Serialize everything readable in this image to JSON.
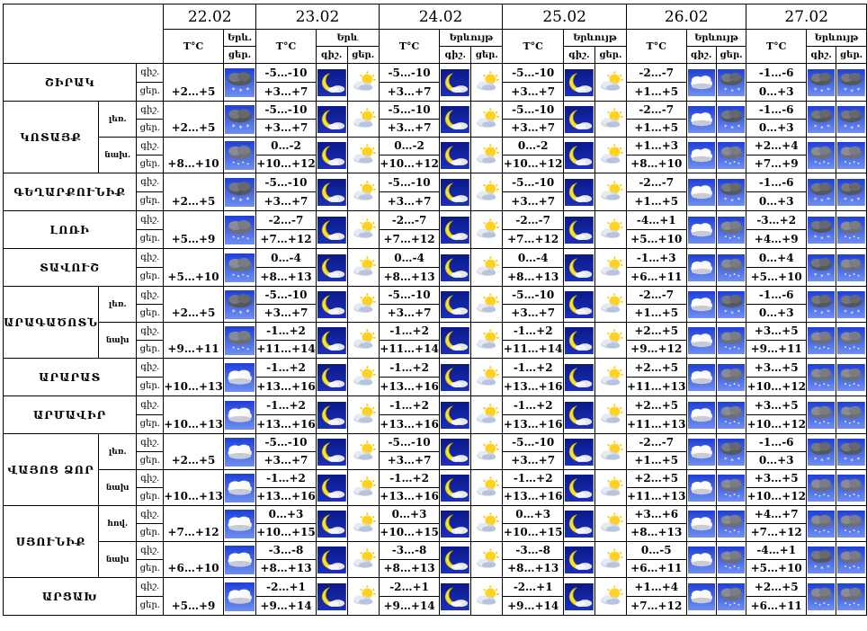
{
  "dates": [
    "22.02",
    "23.02",
    "24.02",
    "25.02",
    "26.02",
    "27.02"
  ],
  "headers": {
    "temp": "T°C",
    "day": "ցեր.",
    "night": "գիշ.",
    "day_short": "ցեր.",
    "exp22": "Երև.",
    "exp23": "Երև",
    "exp": "Երևույթ"
  },
  "row_labels": {
    "night": "գիշ.",
    "day": "ցեր."
  },
  "regions": [
    {
      "name": "ՇԻՐԱԿ",
      "subs": [
        {
          "sub": "",
          "t22": [
            "",
            "+2…+5"
          ],
          "i22": [
            "",
            "snow-cloud"
          ],
          "t": [
            [
              "-5…-10",
              "+3…+7"
            ],
            [
              "-5…-10",
              "+3…+7"
            ],
            [
              "-5…-10",
              "+3…+7"
            ],
            [
              "-2…-7",
              "+1…+5"
            ],
            [
              "-1…-6",
              "0…+3"
            ]
          ],
          "ic": [
            [
              "moon",
              "sun-cloud"
            ],
            [
              "moon",
              "sun-cloud"
            ],
            [
              "moon",
              "sun-cloud"
            ],
            [
              "cloud",
              "snow-cloud"
            ],
            [
              "snow-cloud",
              "snow-cloud"
            ]
          ]
        }
      ]
    },
    {
      "name": "ԿՈՏԱՅՔ",
      "subs": [
        {
          "sub": "լեռ.",
          "t22": [
            "",
            "+2…+5"
          ],
          "i22": [
            "",
            "snow-cloud"
          ],
          "t": [
            [
              "-5…-10",
              "+3…+7"
            ],
            [
              "-5…-10",
              "+3…+7"
            ],
            [
              "-5…-10",
              "+3…+7"
            ],
            [
              "-2…-7",
              "+1…+5"
            ],
            [
              "-1…-6",
              "0…+3"
            ]
          ],
          "ic": [
            [
              "moon",
              "sun-cloud"
            ],
            [
              "moon",
              "sun-cloud"
            ],
            [
              "moon",
              "sun-cloud"
            ],
            [
              "cloud",
              "snow-cloud"
            ],
            [
              "snow-cloud",
              "snow-cloud"
            ]
          ]
        },
        {
          "sub": "նախ.",
          "t22": [
            "",
            "+8…+10"
          ],
          "i22": [
            "",
            "rain-cloud"
          ],
          "t": [
            [
              "0…-2",
              "+10…+12"
            ],
            [
              "0…-2",
              "+10…+12"
            ],
            [
              "0…-2",
              "+10…+12"
            ],
            [
              "+1…+3",
              "+8…+10"
            ],
            [
              "+2…+4",
              "+7…+9"
            ]
          ],
          "ic": [
            [
              "moon",
              "sun-cloud"
            ],
            [
              "moon",
              "sun-cloud"
            ],
            [
              "moon",
              "sun-cloud"
            ],
            [
              "cloud",
              "rain-cloud"
            ],
            [
              "rain-cloud",
              "rain-cloud"
            ]
          ]
        }
      ]
    },
    {
      "name": "ԳԵՂԱՐՔՈՒՆԻՔ",
      "subs": [
        {
          "sub": "",
          "t22": [
            "",
            "+2…+5"
          ],
          "i22": [
            "",
            "snow-cloud"
          ],
          "t": [
            [
              "-5…-10",
              "+3…+7"
            ],
            [
              "-5…-10",
              "+3…+7"
            ],
            [
              "-5…-10",
              "+3…+7"
            ],
            [
              "-2…-7",
              "+1…+5"
            ],
            [
              "-1…-6",
              "0…+3"
            ]
          ],
          "ic": [
            [
              "moon",
              "sun-cloud"
            ],
            [
              "moon",
              "sun-cloud"
            ],
            [
              "moon",
              "sun-cloud"
            ],
            [
              "cloud",
              "snow-cloud"
            ],
            [
              "snow-cloud",
              "snow-cloud"
            ]
          ]
        }
      ]
    },
    {
      "name": "ԼՈՌԻ",
      "subs": [
        {
          "sub": "",
          "t22": [
            "",
            "+5…+9"
          ],
          "i22": [
            "",
            "rain-cloud"
          ],
          "t": [
            [
              "-2…-7",
              "+7…+12"
            ],
            [
              "-2…-7",
              "+7…+12"
            ],
            [
              "-2…-7",
              "+7…+12"
            ],
            [
              "-4…+1",
              "+5…+10"
            ],
            [
              "-3…+2",
              "+4…+9"
            ]
          ],
          "ic": [
            [
              "moon",
              "sun-cloud"
            ],
            [
              "moon",
              "sun-cloud"
            ],
            [
              "moon",
              "sun-cloud"
            ],
            [
              "cloud",
              "rain-cloud"
            ],
            [
              "snow-cloud",
              "rain-cloud"
            ]
          ]
        }
      ]
    },
    {
      "name": "ՏԱՎՈՒՇ",
      "subs": [
        {
          "sub": "",
          "t22": [
            "",
            "+5…+10"
          ],
          "i22": [
            "",
            "rain-cloud"
          ],
          "t": [
            [
              "0…-4",
              "+8…+13"
            ],
            [
              "0…-4",
              "+8…+13"
            ],
            [
              "0…-4",
              "+8…+13"
            ],
            [
              "-1…+3",
              "+6…+11"
            ],
            [
              "0…+4",
              "+5…+10"
            ]
          ],
          "ic": [
            [
              "moon",
              "sun-cloud"
            ],
            [
              "moon",
              "sun-cloud"
            ],
            [
              "moon",
              "sun-cloud"
            ],
            [
              "cloud",
              "rain-cloud"
            ],
            [
              "snow-cloud",
              "rain-cloud"
            ]
          ]
        }
      ]
    },
    {
      "name": "ԱՐԱԳԱԾՈՏՆ",
      "subs": [
        {
          "sub": "լեռ.",
          "t22": [
            "",
            "+2…+5"
          ],
          "i22": [
            "",
            "snow-cloud"
          ],
          "t": [
            [
              "-5…-10",
              "+3…+7"
            ],
            [
              "-5…-10",
              "+3…+7"
            ],
            [
              "-5…-10",
              "+3…+7"
            ],
            [
              "-2…-7",
              "+1…+5"
            ],
            [
              "-1…-6",
              "0…+3"
            ]
          ],
          "ic": [
            [
              "moon",
              "sun-cloud"
            ],
            [
              "moon",
              "sun-cloud"
            ],
            [
              "moon",
              "sun-cloud"
            ],
            [
              "cloud",
              "snow-cloud"
            ],
            [
              "snow-cloud",
              "snow-cloud"
            ]
          ]
        },
        {
          "sub": "նախ",
          "t22": [
            "",
            "+9…+11"
          ],
          "i22": [
            "",
            "rain-cloud"
          ],
          "t": [
            [
              "-1…+2",
              "+11…+14"
            ],
            [
              "-1…+2",
              "+11…+14"
            ],
            [
              "-1…+2",
              "+11…+14"
            ],
            [
              "+2…+5",
              "+9…+12"
            ],
            [
              "+3…+5",
              "+9…+11"
            ]
          ],
          "ic": [
            [
              "moon",
              "sun-cloud"
            ],
            [
              "moon",
              "sun-cloud"
            ],
            [
              "moon",
              "sun-cloud"
            ],
            [
              "cloud",
              "rain-cloud"
            ],
            [
              "rain-cloud",
              "rain-cloud"
            ]
          ]
        }
      ]
    },
    {
      "name": "ԱՐԱՐԱՏ",
      "subs": [
        {
          "sub": "",
          "t22": [
            "",
            "+10…+13"
          ],
          "i22": [
            "",
            "cloud"
          ],
          "t": [
            [
              "-1…+2",
              "+13…+16"
            ],
            [
              "-1…+2",
              "+13…+16"
            ],
            [
              "-1…+2",
              "+13…+16"
            ],
            [
              "+2…+5",
              "+11…+13"
            ],
            [
              "+3…+5",
              "+10…+12"
            ]
          ],
          "ic": [
            [
              "moon",
              "sun-cloud"
            ],
            [
              "moon",
              "sun-cloud"
            ],
            [
              "moon",
              "sun-cloud"
            ],
            [
              "cloud",
              "rain-cloud"
            ],
            [
              "rain-cloud",
              "rain-cloud"
            ]
          ]
        }
      ]
    },
    {
      "name": "ԱՐՄԱՎԻՐ",
      "subs": [
        {
          "sub": "",
          "t22": [
            "",
            "+10…+13"
          ],
          "i22": [
            "",
            "cloud"
          ],
          "t": [
            [
              "-1…+2",
              "+13…+16"
            ],
            [
              "-1…+2",
              "+13…+16"
            ],
            [
              "-1…+2",
              "+13…+16"
            ],
            [
              "+2…+5",
              "+11…+13"
            ],
            [
              "+3…+5",
              "+10…+12"
            ]
          ],
          "ic": [
            [
              "moon",
              "sun-cloud"
            ],
            [
              "moon",
              "sun-cloud"
            ],
            [
              "moon",
              "sun-cloud"
            ],
            [
              "cloud",
              "rain-cloud"
            ],
            [
              "rain-cloud",
              "rain-cloud"
            ]
          ]
        }
      ]
    },
    {
      "name": "ՎԱՅՈՑ ՁՈՐ",
      "subs": [
        {
          "sub": "լեռ.",
          "t22": [
            "",
            "+2…+5"
          ],
          "i22": [
            "",
            "cloud"
          ],
          "t": [
            [
              "-5…-10",
              "+3…+7"
            ],
            [
              "-5…-10",
              "+3…+7"
            ],
            [
              "-5…-10",
              "+3…+7"
            ],
            [
              "-2…-7",
              "+1…+5"
            ],
            [
              "-1…-6",
              "0…+3"
            ]
          ],
          "ic": [
            [
              "moon",
              "sun-cloud"
            ],
            [
              "moon",
              "sun-cloud"
            ],
            [
              "moon",
              "sun-cloud"
            ],
            [
              "cloud",
              "snow-cloud"
            ],
            [
              "snow-cloud",
              "snow-cloud"
            ]
          ]
        },
        {
          "sub": "նախ",
          "t22": [
            "",
            "+10…+13"
          ],
          "i22": [
            "",
            "cloud"
          ],
          "t": [
            [
              "-1…+2",
              "+13…+16"
            ],
            [
              "-1…+2",
              "+13…+16"
            ],
            [
              "-1…+2",
              "+13…+16"
            ],
            [
              "+2…+5",
              "+11…+13"
            ],
            [
              "+3…+5",
              "+10…+12"
            ]
          ],
          "ic": [
            [
              "moon",
              "sun-cloud"
            ],
            [
              "moon",
              "sun-cloud"
            ],
            [
              "moon",
              "sun-cloud"
            ],
            [
              "cloud",
              "rain-cloud"
            ],
            [
              "rain-cloud",
              "rain-cloud"
            ]
          ]
        }
      ]
    },
    {
      "name": "ՍՅՈՒՆԻՔ",
      "subs": [
        {
          "sub": "հով.",
          "t22": [
            "",
            "+7…+12"
          ],
          "i22": [
            "",
            "cloud"
          ],
          "t": [
            [
              "0…+3",
              "+10…+15"
            ],
            [
              "0…+3",
              "+10…+15"
            ],
            [
              "0…+3",
              "+10…+15"
            ],
            [
              "+3…+6",
              "+8…+13"
            ],
            [
              "+4…+7",
              "+7…+12"
            ]
          ],
          "ic": [
            [
              "moon",
              "sun-cloud"
            ],
            [
              "moon",
              "sun-cloud"
            ],
            [
              "moon",
              "sun-cloud"
            ],
            [
              "cloud",
              "rain-cloud"
            ],
            [
              "rain-cloud",
              "rain-cloud"
            ]
          ]
        },
        {
          "sub": "նախ",
          "t22": [
            "",
            "+6…+10"
          ],
          "i22": [
            "",
            "cloud"
          ],
          "t": [
            [
              "-3…-8",
              "+8…+13"
            ],
            [
              "-3…-8",
              "+8…+13"
            ],
            [
              "-3…-8",
              "+8…+13"
            ],
            [
              "0…-5",
              "+6…+11"
            ],
            [
              "-4…+1",
              "+5…+10"
            ]
          ],
          "ic": [
            [
              "moon",
              "sun-cloud"
            ],
            [
              "moon",
              "sun-cloud"
            ],
            [
              "moon",
              "sun-cloud"
            ],
            [
              "cloud",
              "rain-cloud"
            ],
            [
              "snow-cloud",
              "rain-cloud"
            ]
          ]
        }
      ]
    },
    {
      "name": "ԱՐՑԱԽ",
      "subs": [
        {
          "sub": "",
          "t22": [
            "",
            "+5…+9"
          ],
          "i22": [
            "",
            "cloud"
          ],
          "t": [
            [
              "-2…+1",
              "+9…+14"
            ],
            [
              "-2…+1",
              "+9…+14"
            ],
            [
              "-2…+1",
              "+9…+14"
            ],
            [
              "+1…+4",
              "+7…+12"
            ],
            [
              "+2…+5",
              "+6…+11"
            ]
          ],
          "ic": [
            [
              "moon",
              "sun-cloud"
            ],
            [
              "moon",
              "sun-cloud"
            ],
            [
              "moon",
              "sun-cloud"
            ],
            [
              "cloud",
              "rain-cloud"
            ],
            [
              "rain-cloud",
              "rain-cloud"
            ]
          ]
        }
      ]
    }
  ]
}
